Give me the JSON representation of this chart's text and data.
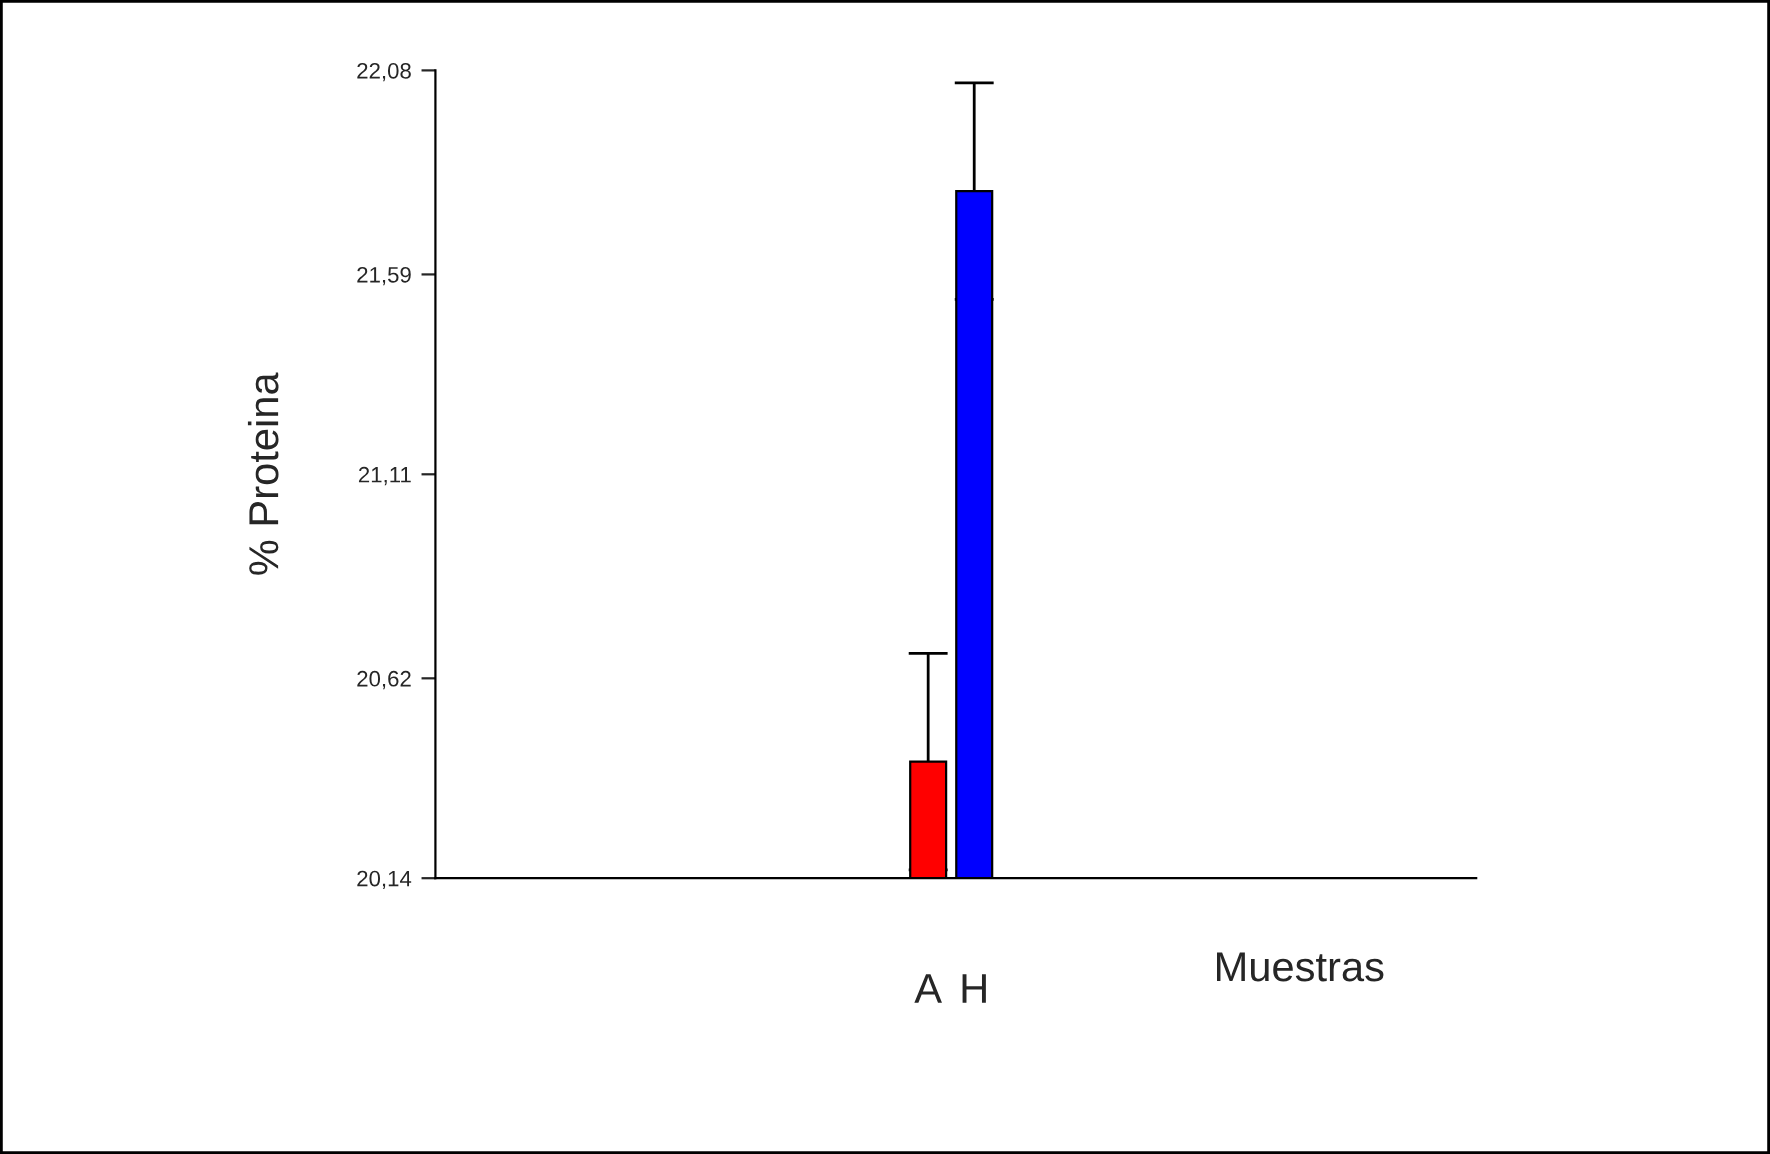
{
  "chart_data": {
    "type": "bar",
    "xlabel": "Muestras",
    "ylabel": "% Proteina",
    "categories": [
      "A",
      "H"
    ],
    "values": [
      20.42,
      21.79
    ],
    "colors": [
      "#ff0000",
      "#0000ff"
    ],
    "errors": [
      0.26,
      0.26
    ],
    "ylim": [
      20.14,
      22.08
    ],
    "yticks": [
      {
        "value": 20.14,
        "label": "20,14"
      },
      {
        "value": 20.62,
        "label": "20,62"
      },
      {
        "value": 21.11,
        "label": "21,11"
      },
      {
        "value": 21.59,
        "label": "21,59"
      },
      {
        "value": 22.08,
        "label": "22,08"
      }
    ],
    "grid": false,
    "legend": false
  }
}
